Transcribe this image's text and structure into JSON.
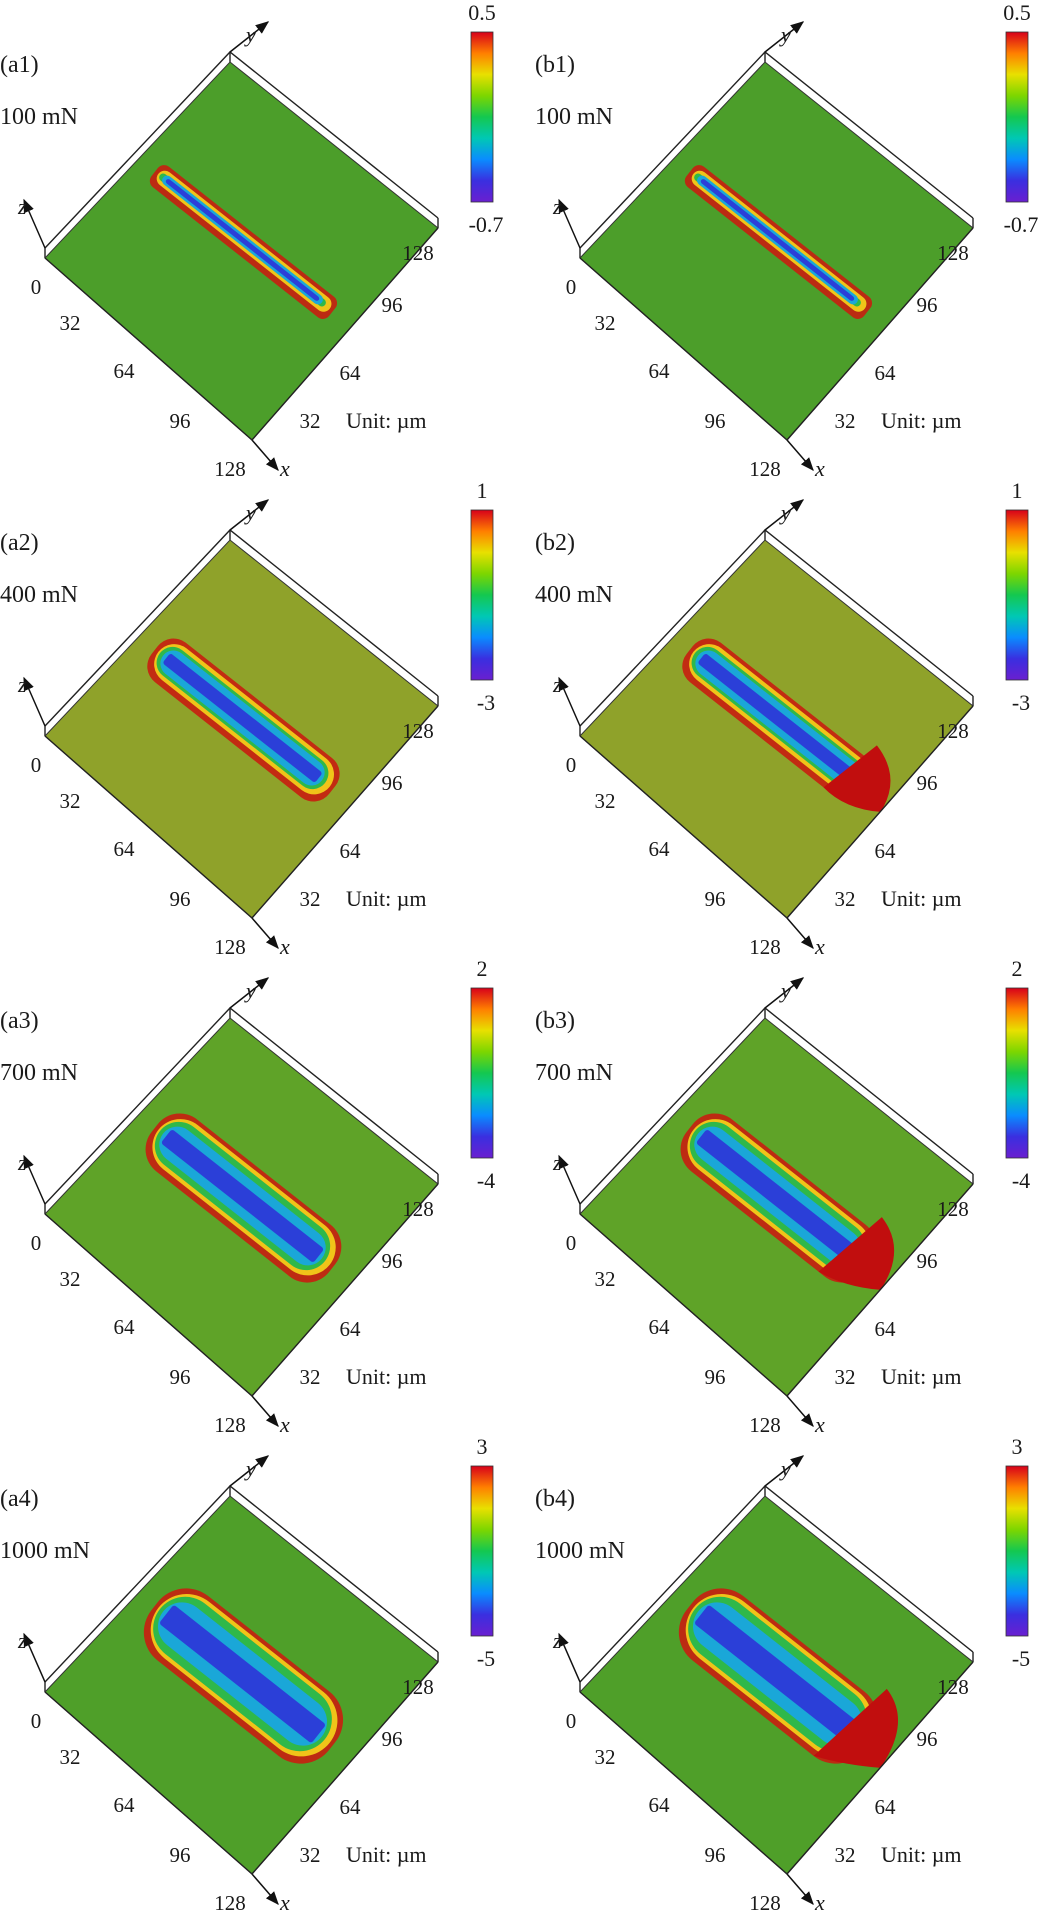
{
  "figure": {
    "unit_label": "Unit: µm",
    "axis_names": {
      "x": "x",
      "y": "y",
      "z": "z"
    },
    "x_ticks": [
      "32",
      "64",
      "96",
      "128"
    ],
    "y_ticks": [
      "32",
      "64",
      "96",
      "128"
    ],
    "z_origin_tick": "0",
    "colormap": [
      "#d7001a",
      "#ff7f00",
      "#e8e000",
      "#7dd600",
      "#14c850",
      "#00c8b4",
      "#0a8cff",
      "#3a2fe0",
      "#6a1fd0"
    ],
    "panels": [
      {
        "id": "(a1)",
        "load": "100 mN",
        "cb_max": "0.5",
        "cb_min": "-0.7",
        "base_color": "#4c9e2a"
      },
      {
        "id": "(b1)",
        "load": "100 mN",
        "cb_max": "0.5",
        "cb_min": "-0.7",
        "base_color": "#4c9e2a"
      },
      {
        "id": "(a2)",
        "load": "400 mN",
        "cb_max": "1",
        "cb_min": "-3",
        "base_color": "#8fa22a"
      },
      {
        "id": "(b2)",
        "load": "400 mN",
        "cb_max": "1",
        "cb_min": "-3",
        "base_color": "#8fa22a"
      },
      {
        "id": "(a3)",
        "load": "700 mN",
        "cb_max": "2",
        "cb_min": "-4",
        "base_color": "#5fa328"
      },
      {
        "id": "(b3)",
        "load": "700 mN",
        "cb_max": "2",
        "cb_min": "-4",
        "base_color": "#5fa328"
      },
      {
        "id": "(a4)",
        "load": "1000 mN",
        "cb_max": "3",
        "cb_min": "-5",
        "base_color": "#4f9f29"
      },
      {
        "id": "(b4)",
        "load": "1000 mN",
        "cb_max": "3",
        "cb_min": "-5",
        "base_color": "#4f9f29"
      }
    ]
  }
}
